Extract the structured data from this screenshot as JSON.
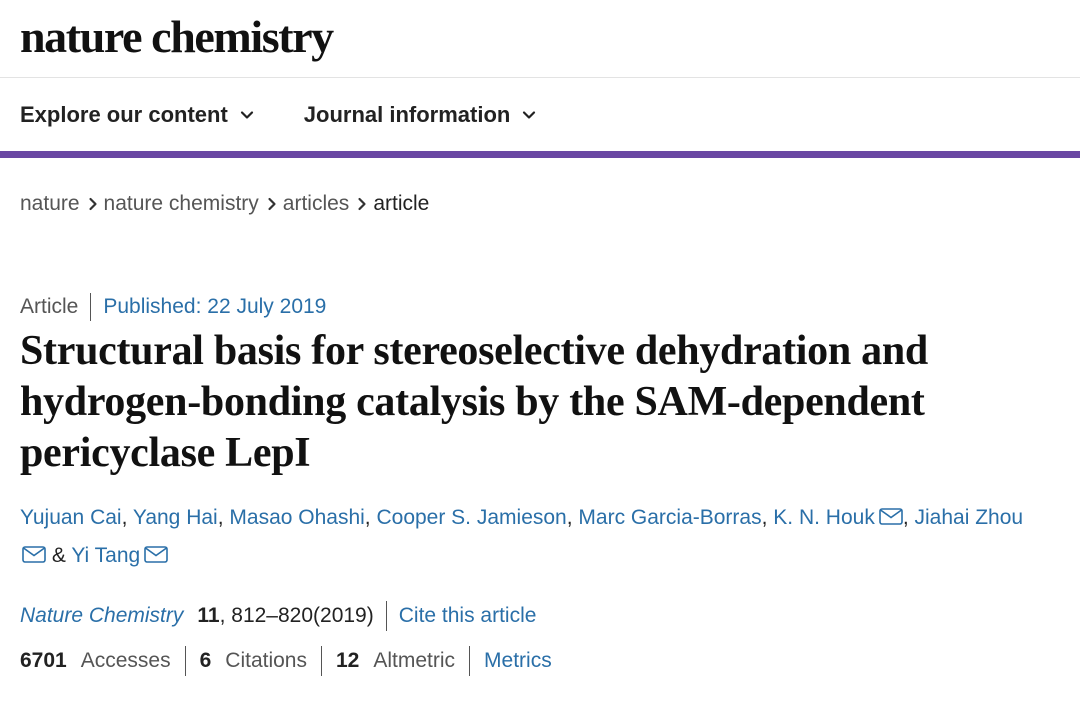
{
  "masthead": {
    "logo_text": "nature chemistry"
  },
  "nav": {
    "items": [
      {
        "label": "Explore our content"
      },
      {
        "label": "Journal information"
      }
    ],
    "accent_color": "#6a47a3"
  },
  "breadcrumb": {
    "items": [
      "nature",
      "nature chemistry",
      "articles"
    ],
    "current": "article"
  },
  "article": {
    "type": "Article",
    "published": "Published: 22 July 2019",
    "title": "Structural basis for stereoselective dehydration and hydrogen-bonding catalysis by the SAM-dependent pericyclase LepI",
    "authors": {
      "a1": "Yujuan Cai",
      "a2": "Yang Hai",
      "a3": "Masao Ohashi",
      "a4": "Cooper S. Jamieson",
      "a5": "Marc Garcia-Borras",
      "a6": "K. N. Houk",
      "a7": "Jiahai Zhou",
      "amp": "&",
      "a8": "Yi Tang"
    },
    "citation": {
      "journal": "Nature Chemistry",
      "volume": "11",
      "pages_year": ", 812–820(2019)",
      "cite_link": "Cite this article"
    },
    "metrics": {
      "accesses_count": "6701",
      "accesses_label": "Accesses",
      "citations_count": "6",
      "citations_label": "Citations",
      "altmetric_count": "12",
      "altmetric_label": "Altmetric",
      "metrics_link": "Metrics"
    }
  },
  "colors": {
    "link": "#2a6fa8",
    "text": "#222222",
    "muted": "#555555"
  }
}
